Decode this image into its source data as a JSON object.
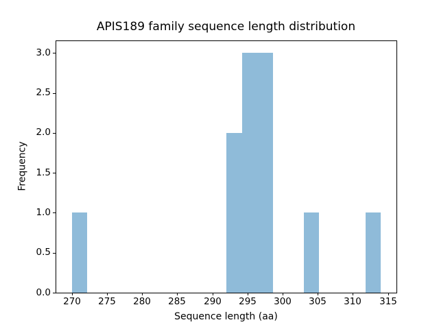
{
  "figure": {
    "background": "#ffffff"
  },
  "chart_data": {
    "type": "bar",
    "subtype": "histogram",
    "title": "APIS189 family sequence length distribution",
    "xlabel": "Sequence length (aa)",
    "ylabel": "Frequency",
    "bar_color": "#8FBBD9",
    "axis_color": "#000000",
    "text_color": "#000000",
    "grid": false,
    "legend": null,
    "xlim": [
      267.8,
      316.2
    ],
    "ylim": [
      0,
      3.15
    ],
    "xticks": [
      270,
      275,
      280,
      285,
      290,
      295,
      300,
      305,
      310,
      315
    ],
    "yticks": [
      0.0,
      0.5,
      1.0,
      1.5,
      2.0,
      2.5,
      3.0
    ],
    "bin_range": [
      270,
      314
    ],
    "bin_width": 2.2,
    "bars": [
      {
        "x0": 270.0,
        "x1": 272.2,
        "frequency": 1
      },
      {
        "x0": 292.0,
        "x1": 294.2,
        "frequency": 2
      },
      {
        "x0": 294.2,
        "x1": 296.4,
        "frequency": 3
      },
      {
        "x0": 296.4,
        "x1": 298.6,
        "frequency": 3
      },
      {
        "x0": 303.0,
        "x1": 305.2,
        "frequency": 1
      },
      {
        "x0": 311.8,
        "x1": 314.0,
        "frequency": 1
      }
    ]
  }
}
